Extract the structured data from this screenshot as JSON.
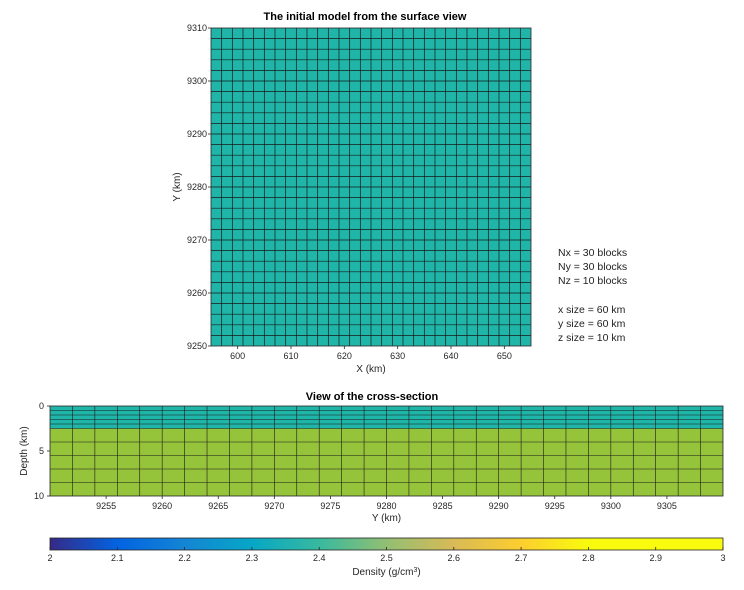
{
  "chart_data": [
    {
      "type": "heatmap",
      "title": "The initial model from the surface view",
      "xlabel": "X (km)",
      "ylabel": "Y (km)",
      "xlim": [
        595,
        655
      ],
      "ylim": [
        9250,
        9310
      ],
      "xticks": [
        600,
        610,
        620,
        630,
        640,
        650
      ],
      "yticks": [
        9250,
        9260,
        9270,
        9280,
        9290,
        9300,
        9310
      ],
      "nx": 30,
      "ny": 30,
      "density": 2.5,
      "cell_color": "#1fb5a8",
      "grid_color": "#1a1a1a"
    },
    {
      "type": "heatmap",
      "title": "View of the cross-section",
      "xlabel": "Y (km)",
      "ylabel": "Depth (km)",
      "xlim": [
        9250,
        9310
      ],
      "ylim": [
        0,
        10
      ],
      "xticks": [
        9255,
        9260,
        9265,
        9270,
        9275,
        9280,
        9285,
        9290,
        9295,
        9300,
        9305
      ],
      "yticks": [
        0,
        5,
        10
      ],
      "ncols": 30,
      "layers": [
        {
          "top": 0,
          "bottom": 0.5,
          "density": 2.5
        },
        {
          "top": 0.5,
          "bottom": 1,
          "density": 2.5
        },
        {
          "top": 1,
          "bottom": 1.5,
          "density": 2.5
        },
        {
          "top": 1.5,
          "bottom": 2,
          "density": 2.5
        },
        {
          "top": 2,
          "bottom": 2.5,
          "density": 2.5
        },
        {
          "top": 2.5,
          "bottom": 4,
          "density": 2.7
        },
        {
          "top": 4,
          "bottom": 5.5,
          "density": 2.7
        },
        {
          "top": 5.5,
          "bottom": 7,
          "density": 2.7
        },
        {
          "top": 7,
          "bottom": 8.5,
          "density": 2.7
        },
        {
          "top": 8.5,
          "bottom": 10,
          "density": 2.7
        }
      ],
      "colors": {
        "2.5": "#1fb5a8",
        "2.7": "#95c33a"
      }
    }
  ],
  "colorbar": {
    "label": "Density (g/cm",
    "label_sup": "3",
    "label_end": ")",
    "min": 2,
    "max": 3,
    "ticks": [
      "2",
      "2.1",
      "2.2",
      "2.3",
      "2.4",
      "2.5",
      "2.6",
      "2.7",
      "2.8",
      "2.9",
      "3"
    ],
    "colormap": "parula"
  },
  "notes": {
    "nx": "Nx = 30 blocks",
    "ny": "Ny = 30 blocks",
    "nz": "Nz = 10 blocks",
    "xsize": "x size = 60 km",
    "ysize": "y size = 60 km",
    "zsize": "z size = 10 km"
  }
}
